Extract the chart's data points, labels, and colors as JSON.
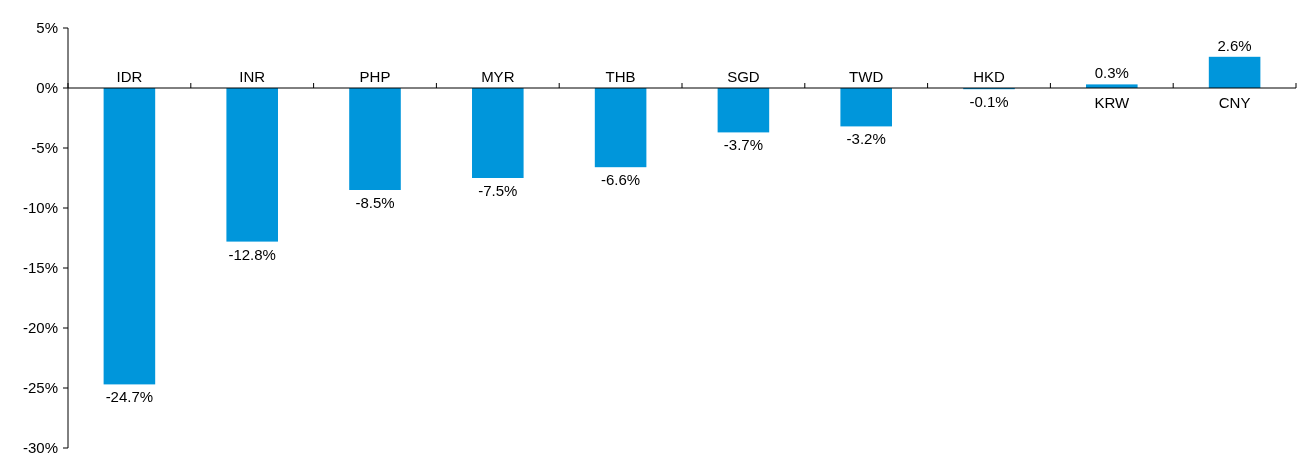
{
  "chart_data": {
    "type": "bar",
    "categories": [
      "IDR",
      "INR",
      "PHP",
      "MYR",
      "THB",
      "SGD",
      "TWD",
      "HKD",
      "KRW",
      "CNY"
    ],
    "values": [
      -24.7,
      -12.8,
      -8.5,
      -7.5,
      -6.6,
      -3.7,
      -3.2,
      -0.1,
      0.3,
      2.6
    ],
    "value_labels": [
      "-24.7%",
      "-12.8%",
      "-8.5%",
      "-7.5%",
      "-6.6%",
      "-3.7%",
      "-3.2%",
      "-0.1%",
      "0.3%",
      "2.6%"
    ],
    "color": "#0096db",
    "ylim": [
      -30,
      5
    ],
    "yticks": [
      {
        "value": 5,
        "label": "5%"
      },
      {
        "value": 0,
        "label": "0%"
      },
      {
        "value": -5,
        "label": "-5%"
      },
      {
        "value": -10,
        "label": "-10%"
      },
      {
        "value": -15,
        "label": "-15%"
      },
      {
        "value": -20,
        "label": "-20%"
      },
      {
        "value": -25,
        "label": "-25%"
      },
      {
        "value": -30,
        "label": "-30%"
      }
    ],
    "grid": false
  }
}
